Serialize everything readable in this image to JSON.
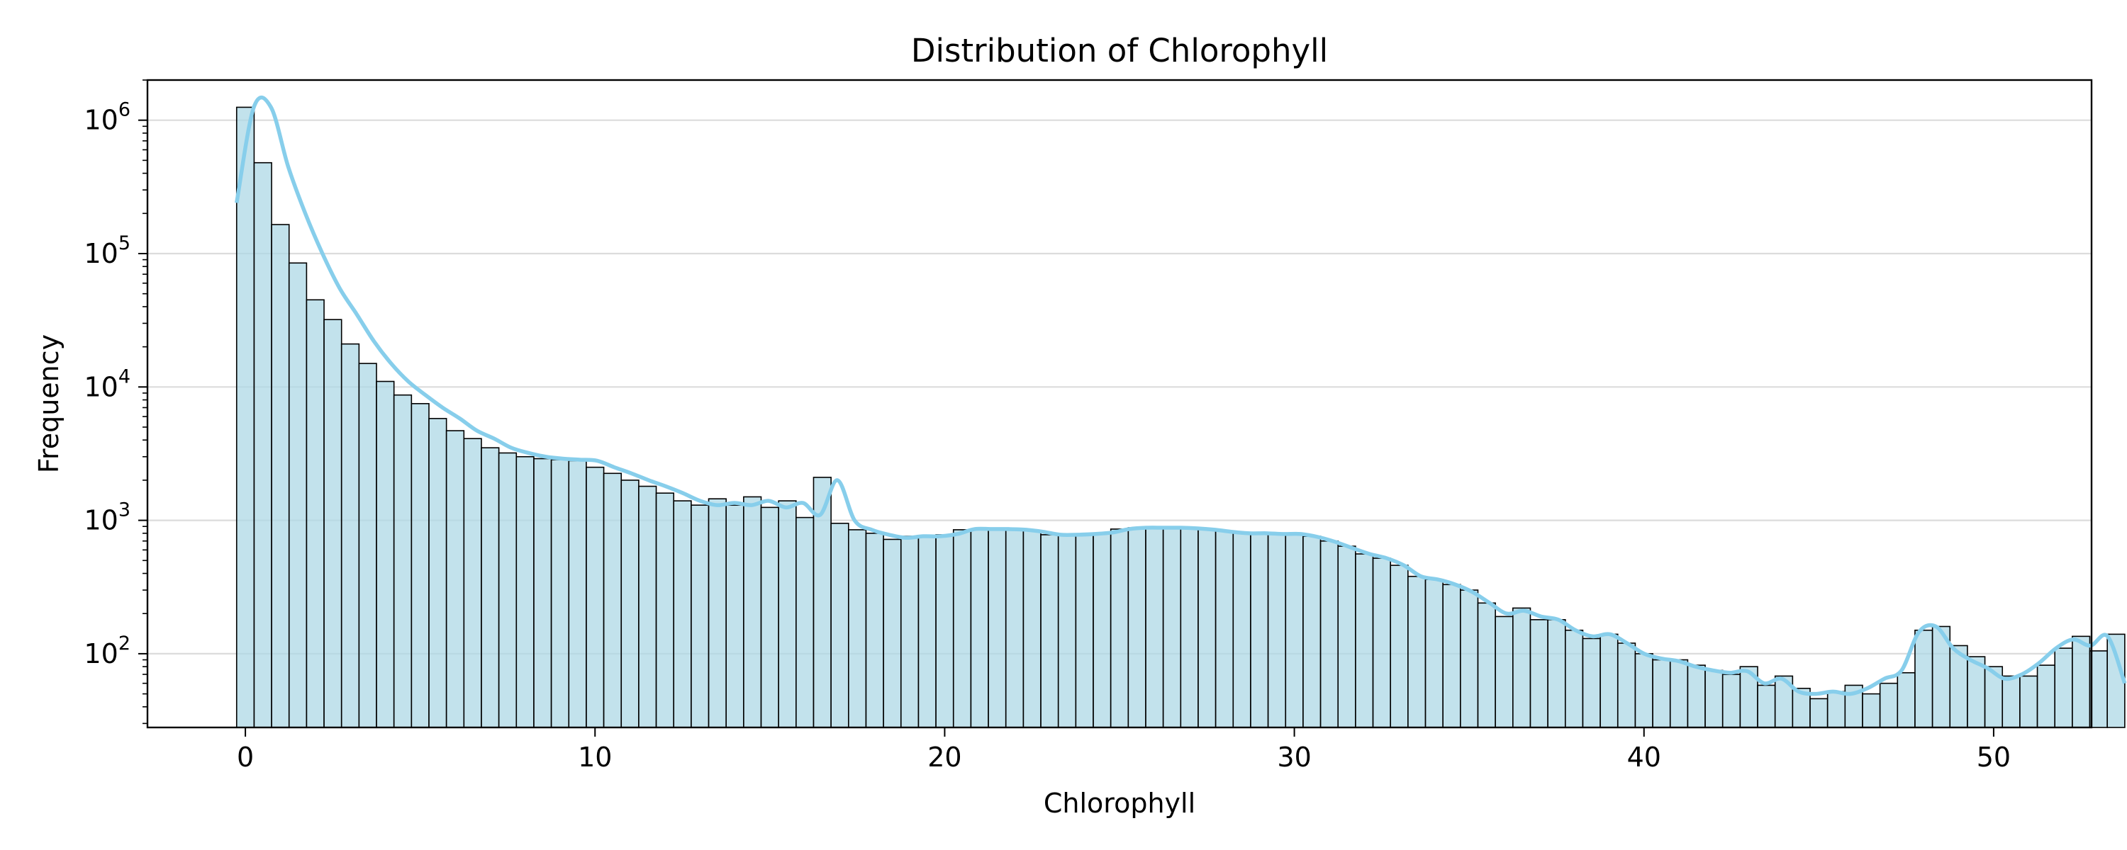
{
  "chart_data": {
    "type": "bar",
    "title": "Distribution of Chlorophyll",
    "xlabel": "Chlorophyll",
    "ylabel": "Frequency",
    "xlim": [
      -2.8,
      52.8
    ],
    "ylim": [
      28,
      2000000
    ],
    "y_scale": "log",
    "grid": "horizontal",
    "bar_color": "#add8e6",
    "bar_edge_color": "#000000",
    "line_color": "#87ceeb",
    "bin_start": -0.25,
    "bin_width": 0.5,
    "x_ticks": [
      0,
      10,
      20,
      30,
      40,
      50
    ],
    "x_tick_labels": [
      "0",
      "10",
      "20",
      "30",
      "40",
      "50"
    ],
    "y_ticks": [
      100,
      1000,
      10000,
      100000,
      1000000
    ],
    "y_tick_labels": [
      {
        "base": "10",
        "exp": "2"
      },
      {
        "base": "10",
        "exp": "3"
      },
      {
        "base": "10",
        "exp": "4"
      },
      {
        "base": "10",
        "exp": "5"
      },
      {
        "base": "10",
        "exp": "6"
      }
    ],
    "values": [
      1250000,
      480000,
      165000,
      85000,
      45000,
      32000,
      21000,
      15000,
      11000,
      8700,
      7500,
      5800,
      4700,
      4100,
      3500,
      3200,
      3000,
      2900,
      2850,
      2800,
      2500,
      2250,
      2000,
      1800,
      1600,
      1400,
      1300,
      1450,
      1300,
      1500,
      1250,
      1400,
      1050,
      2100,
      950,
      850,
      800,
      720,
      760,
      760,
      780,
      850,
      850,
      860,
      860,
      840,
      780,
      780,
      790,
      800,
      860,
      880,
      880,
      880,
      880,
      860,
      830,
      800,
      800,
      790,
      800,
      760,
      700,
      640,
      560,
      520,
      460,
      380,
      360,
      330,
      300,
      240,
      190,
      220,
      180,
      180,
      150,
      130,
      140,
      120,
      100,
      90,
      90,
      82,
      75,
      70,
      80,
      58,
      68,
      55,
      46,
      52,
      58,
      50,
      60,
      72,
      150,
      160,
      115,
      95,
      80,
      68,
      68,
      82,
      110,
      135,
      105,
      140
    ],
    "kde": [
      240000,
      1250000,
      1250000,
      450000,
      200000,
      100000,
      55000,
      35000,
      22000,
      15000,
      11000,
      8700,
      7000,
      5800,
      4700,
      4100,
      3500,
      3200,
      3000,
      2900,
      2850,
      2800,
      2500,
      2250,
      2000,
      1800,
      1600,
      1400,
      1300,
      1350,
      1300,
      1400,
      1250,
      1350,
      1100,
      2000,
      1000,
      850,
      780,
      740,
      760,
      760,
      790,
      860,
      860,
      860,
      850,
      820,
      780,
      780,
      790,
      810,
      860,
      880,
      880,
      880,
      870,
      850,
      820,
      800,
      800,
      790,
      790,
      750,
      690,
      620,
      560,
      520,
      460,
      380,
      360,
      330,
      290,
      240,
      200,
      210,
      190,
      180,
      150,
      135,
      140,
      120,
      100,
      92,
      88,
      80,
      75,
      72,
      74,
      60,
      65,
      52,
      50,
      52,
      50,
      55,
      65,
      75,
      145,
      160,
      110,
      90,
      78,
      65,
      70,
      85,
      110,
      128,
      115,
      135,
      60
    ]
  }
}
